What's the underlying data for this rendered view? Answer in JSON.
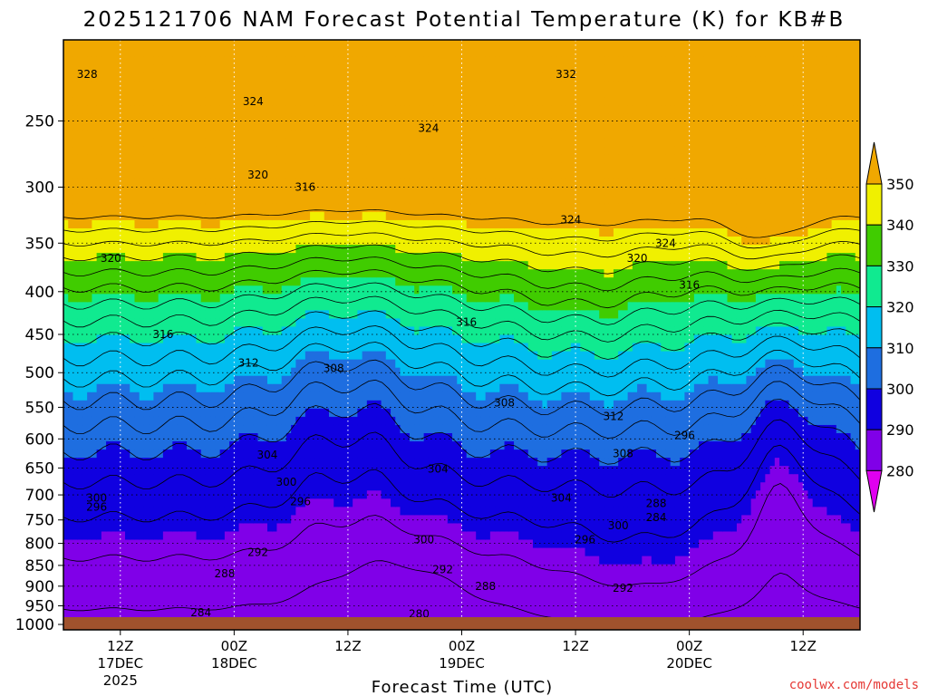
{
  "title": "2025121706 NAM Forecast Potential Temperature (K) for KB#B",
  "credit": "coolwx.com/models",
  "chart_data": {
    "type": "heatmap",
    "title": "2025121706 NAM Forecast Potential Temperature (K) for KB#B",
    "xlabel": "Forecast Time (UTC)",
    "ylabel": "",
    "x_ticks": [
      {
        "l1": "12Z",
        "l2": "17DEC",
        "l3": "2025"
      },
      {
        "l1": "00Z",
        "l2": "18DEC",
        "l3": ""
      },
      {
        "l1": "12Z",
        "l2": "",
        "l3": ""
      },
      {
        "l1": "00Z",
        "l2": "19DEC",
        "l3": ""
      },
      {
        "l1": "12Z",
        "l2": "",
        "l3": ""
      },
      {
        "l1": "00Z",
        "l2": "20DEC",
        "l3": ""
      },
      {
        "l1": "12Z",
        "l2": "",
        "l3": ""
      }
    ],
    "x_tick_hours": [
      6,
      18,
      30,
      42,
      54,
      66,
      78
    ],
    "xlim_hours": [
      0,
      84
    ],
    "y_ticks": [
      250,
      300,
      350,
      400,
      450,
      500,
      550,
      600,
      650,
      700,
      750,
      800,
      850,
      900,
      950,
      1000
    ],
    "ylim_hpa": [
      200,
      1015
    ],
    "grid": true,
    "colorbar": {
      "labels": [
        "350",
        "340",
        "330",
        "320",
        "310",
        "300",
        "290",
        "280"
      ],
      "bins": [
        {
          "from": 270,
          "to": 280,
          "color": "#e000f0"
        },
        {
          "from": 280,
          "to": 290,
          "color": "#8000e8"
        },
        {
          "from": 290,
          "to": 300,
          "color": "#1000e0"
        },
        {
          "from": 300,
          "to": 310,
          "color": "#1e6ee0"
        },
        {
          "from": 310,
          "to": 320,
          "color": "#00bef0"
        },
        {
          "from": 320,
          "to": 330,
          "color": "#10ea90"
        },
        {
          "from": 330,
          "to": 340,
          "color": "#40cc00"
        },
        {
          "from": 340,
          "to": 350,
          "color": "#f0f000"
        },
        {
          "from": 350,
          "to": 360,
          "color": "#f0a800"
        }
      ]
    },
    "contour_interval_k": 4,
    "contour_labels": [
      {
        "text": "328",
        "t": 2.5,
        "p": 220
      },
      {
        "text": "324",
        "t": 20,
        "p": 237
      },
      {
        "text": "320",
        "t": 20.5,
        "p": 290
      },
      {
        "text": "316",
        "t": 25.5,
        "p": 300
      },
      {
        "text": "324",
        "t": 38.5,
        "p": 255
      },
      {
        "text": "332",
        "t": 53,
        "p": 220
      },
      {
        "text": "324",
        "t": 53.5,
        "p": 328
      },
      {
        "text": "324",
        "t": 63.5,
        "p": 350
      },
      {
        "text": "320",
        "t": 60.5,
        "p": 365
      },
      {
        "text": "316",
        "t": 66,
        "p": 393
      },
      {
        "text": "320",
        "t": 5,
        "p": 365
      },
      {
        "text": "316",
        "t": 10.5,
        "p": 450
      },
      {
        "text": "316",
        "t": 42.5,
        "p": 435
      },
      {
        "text": "312",
        "t": 19.5,
        "p": 487
      },
      {
        "text": "308",
        "t": 28.5,
        "p": 494
      },
      {
        "text": "308",
        "t": 46.5,
        "p": 543
      },
      {
        "text": "312",
        "t": 58,
        "p": 564
      },
      {
        "text": "308",
        "t": 59,
        "p": 625
      },
      {
        "text": "296",
        "t": 65.5,
        "p": 594
      },
      {
        "text": "304",
        "t": 21.5,
        "p": 627
      },
      {
        "text": "300",
        "t": 23.5,
        "p": 676
      },
      {
        "text": "304",
        "t": 39.5,
        "p": 652
      },
      {
        "text": "304",
        "t": 52.5,
        "p": 706
      },
      {
        "text": "300",
        "t": 3.5,
        "p": 706
      },
      {
        "text": "296",
        "t": 3.5,
        "p": 724
      },
      {
        "text": "296",
        "t": 25,
        "p": 713
      },
      {
        "text": "288",
        "t": 62.5,
        "p": 717
      },
      {
        "text": "284",
        "t": 62.5,
        "p": 745
      },
      {
        "text": "300",
        "t": 38,
        "p": 792
      },
      {
        "text": "300",
        "t": 58.5,
        "p": 762
      },
      {
        "text": "296",
        "t": 55,
        "p": 792
      },
      {
        "text": "292",
        "t": 20.5,
        "p": 820
      },
      {
        "text": "292",
        "t": 40,
        "p": 860
      },
      {
        "text": "292",
        "t": 59,
        "p": 905
      },
      {
        "text": "288",
        "t": 17,
        "p": 870
      },
      {
        "text": "288",
        "t": 44.5,
        "p": 900
      },
      {
        "text": "284",
        "t": 14.5,
        "p": 968
      },
      {
        "text": "280",
        "t": 37.5,
        "p": 972
      }
    ]
  }
}
